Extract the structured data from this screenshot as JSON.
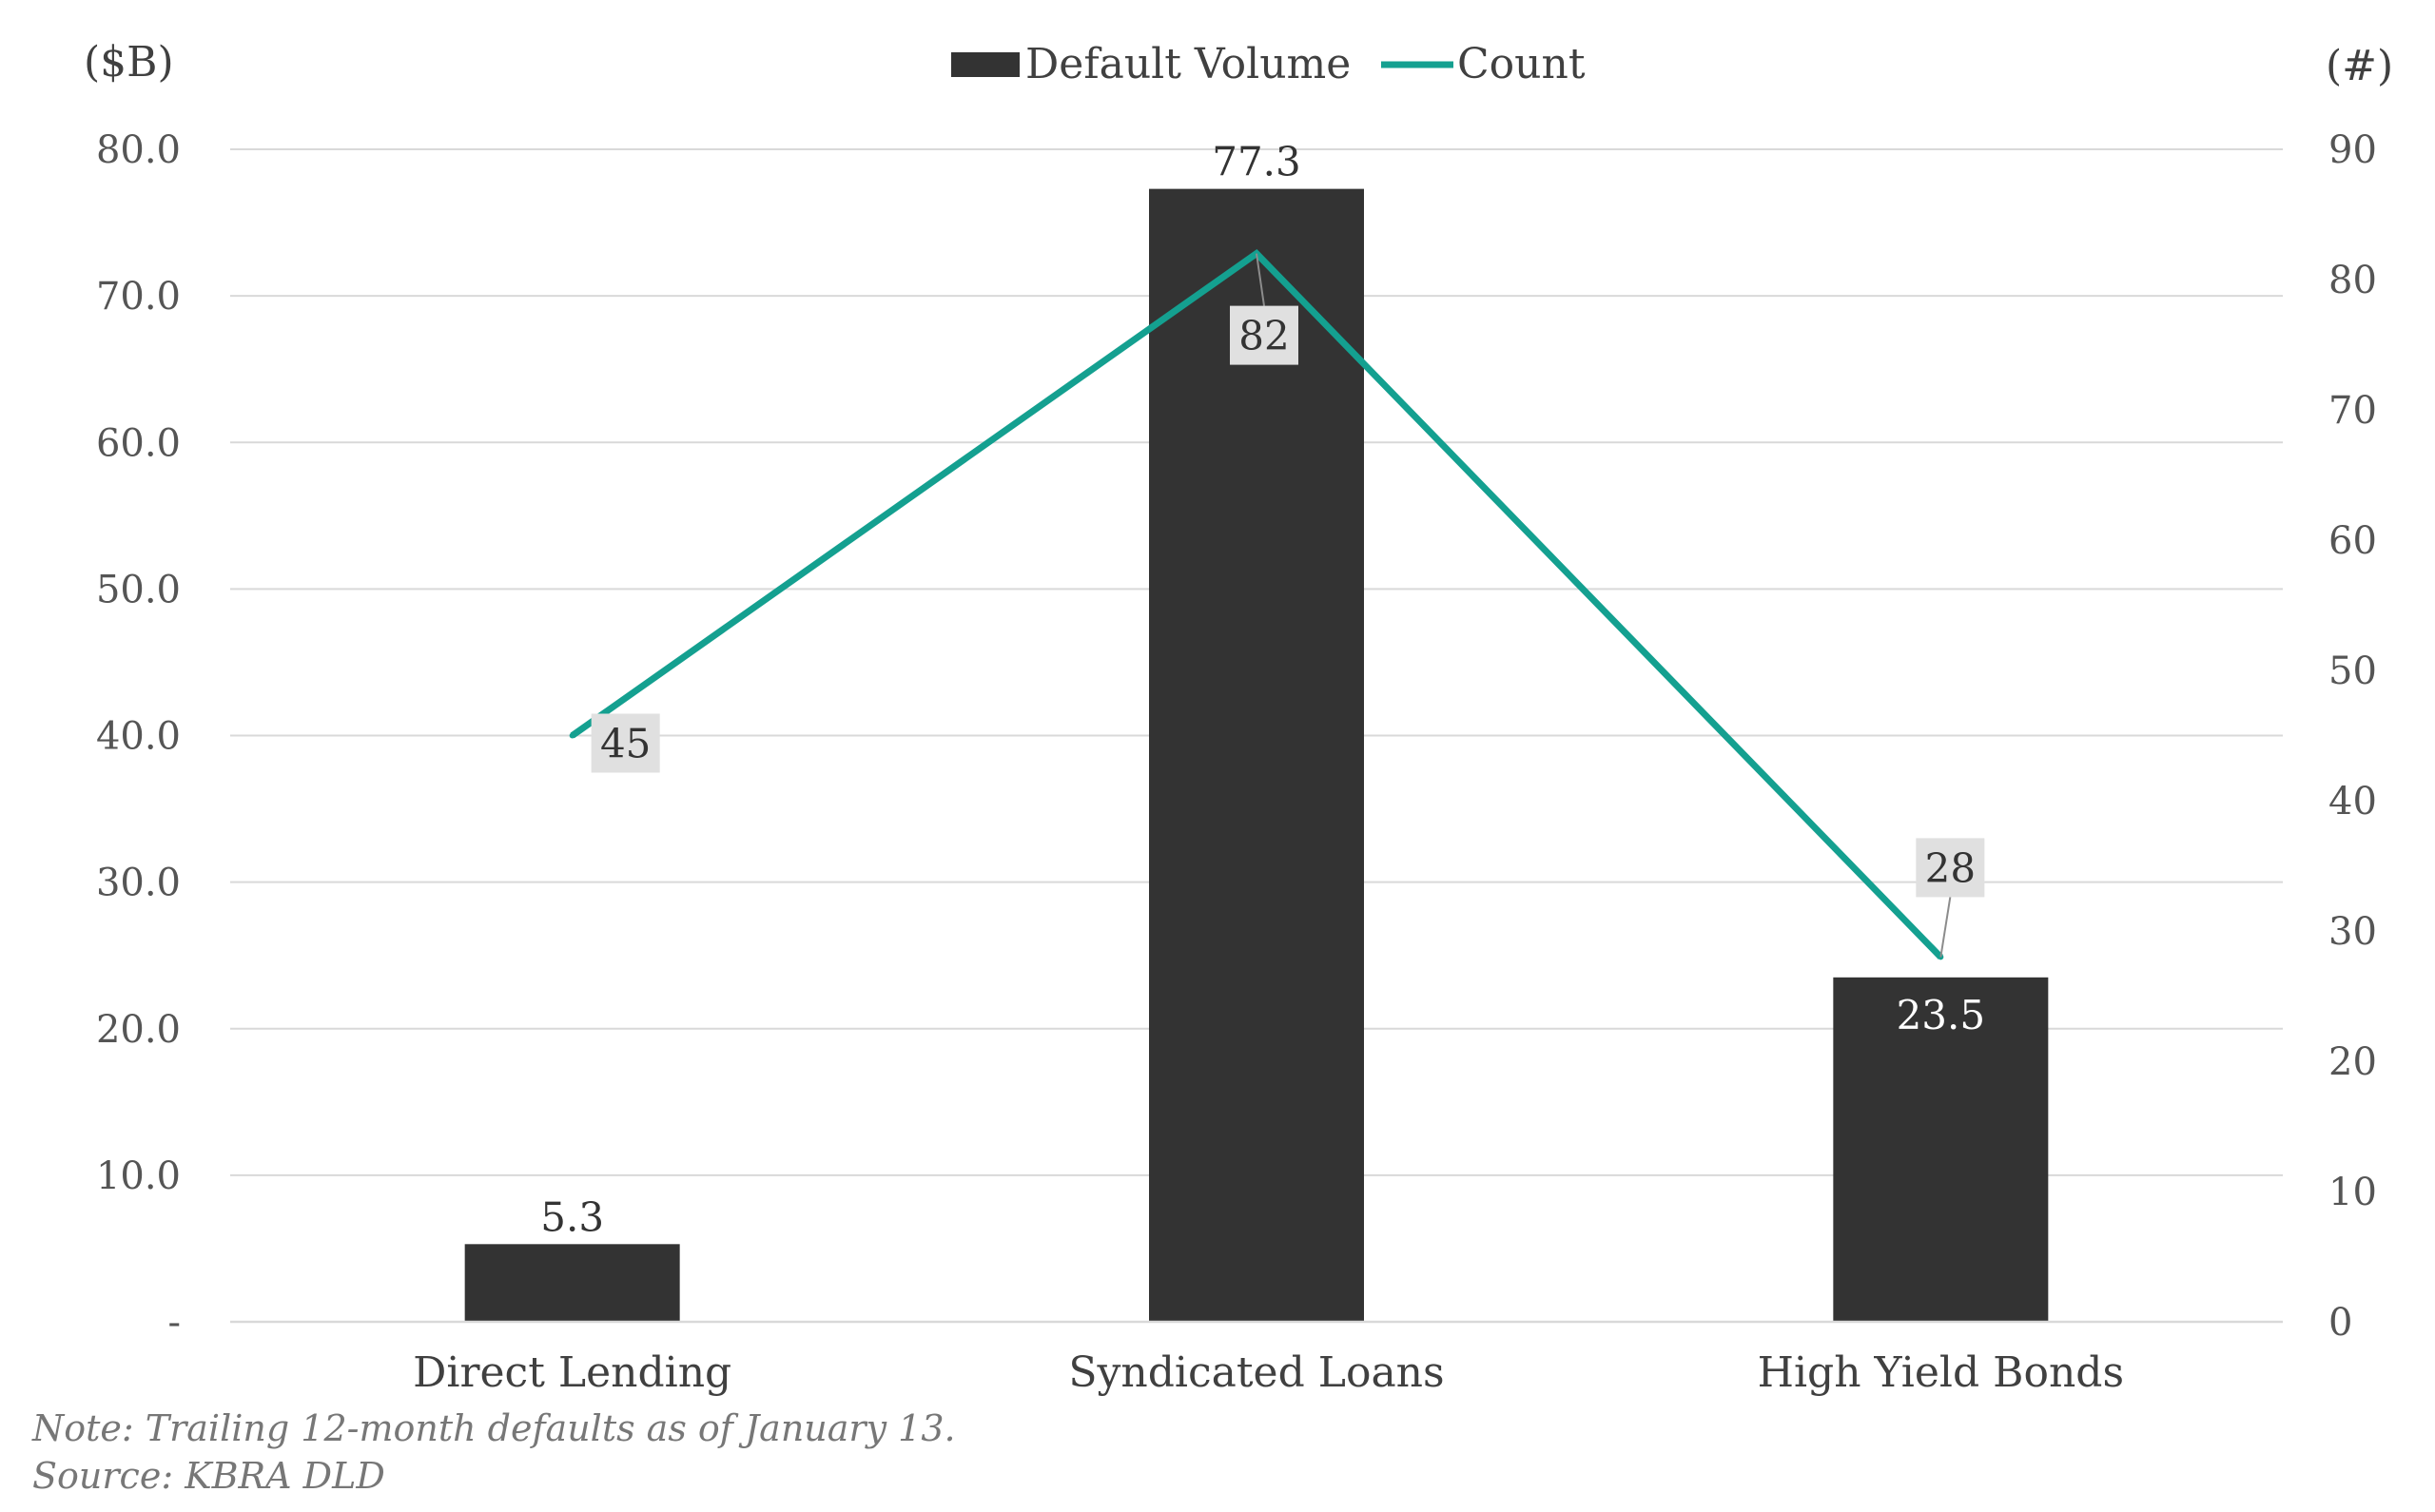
{
  "chart_data": {
    "type": "bar",
    "categories": [
      "Direct Lending",
      "Syndicated Loans",
      "High Yield Bonds"
    ],
    "series": [
      {
        "name": "Default Volume",
        "type": "bar",
        "axis": "left",
        "values": [
          5.3,
          77.3,
          23.5
        ],
        "labels": [
          "5.3",
          "77.3",
          "23.5"
        ],
        "color": "#333333"
      },
      {
        "name": "Count",
        "type": "line",
        "axis": "right",
        "values": [
          45,
          82,
          28
        ],
        "labels": [
          "45",
          "82",
          "28"
        ],
        "color": "#14a090"
      }
    ],
    "y_left": {
      "label": "($B)",
      "min": 0,
      "max": 80,
      "ticks": [
        "-",
        "10.0",
        "20.0",
        "30.0",
        "40.0",
        "50.0",
        "60.0",
        "70.0",
        "80.0"
      ]
    },
    "y_right": {
      "label": "(#)",
      "min": 0,
      "max": 90,
      "ticks": [
        "0",
        "10",
        "20",
        "30",
        "40",
        "50",
        "60",
        "70",
        "80",
        "90"
      ]
    },
    "grid": true,
    "legend": "top-center",
    "colors": {
      "bar": "#333333",
      "line": "#14a090",
      "grid": "#d9d9d9",
      "label_box": "#e0e0e0"
    }
  },
  "footer": {
    "note": "Note: Trailing 12-month defaults as of January 13.",
    "source": "Source: KBRA DLD"
  }
}
